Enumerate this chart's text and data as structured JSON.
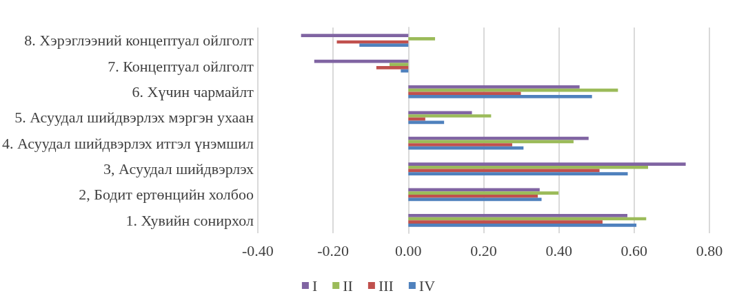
{
  "chart_data": {
    "type": "bar",
    "orientation": "horizontal",
    "categories": [
      "8. Хэрэглээний концептуал ойлголт",
      "7. Концептуал ойлголт",
      "6. Хүчин чармайлт",
      "5. Асуудал шийдвэрлэх мэргэн ухаан",
      "4. Асуудал шийдвэрлэх итгэл үнэмшил",
      "3, Асуудал шийдвэрлэх",
      "2, Бодит ертөнцийн холбоо",
      "1. Хувийн сонирхол"
    ],
    "series": [
      {
        "name": "I",
        "color": "#8064a2",
        "values": [
          -0.285,
          -0.25,
          0.455,
          0.169,
          0.479,
          0.737,
          0.349,
          0.582
        ]
      },
      {
        "name": "II",
        "color": "#9bbb59",
        "values": [
          0.071,
          -0.05,
          0.557,
          0.22,
          0.439,
          0.637,
          0.399,
          0.632
        ]
      },
      {
        "name": "III",
        "color": "#c0504d",
        "values": [
          -0.19,
          -0.085,
          0.299,
          0.045,
          0.276,
          0.508,
          0.344,
          0.516
        ]
      },
      {
        "name": "IV",
        "color": "#4f81bd",
        "values": [
          -0.13,
          -0.02,
          0.488,
          0.095,
          0.306,
          0.583,
          0.354,
          0.606
        ]
      }
    ],
    "xlim": [
      -0.4,
      0.8
    ],
    "xticks": [
      {
        "value": -0.4,
        "label": "-0.40"
      },
      {
        "value": -0.2,
        "label": "-0.20"
      },
      {
        "value": 0,
        "label": "0.00"
      },
      {
        "value": 0.2,
        "label": "0.20"
      },
      {
        "value": 0.4,
        "label": "0.40"
      },
      {
        "value": 0.6,
        "label": "0.60"
      },
      {
        "value": 0.8,
        "label": "0.80"
      }
    ],
    "grid": "x",
    "legend": "bottom"
  }
}
